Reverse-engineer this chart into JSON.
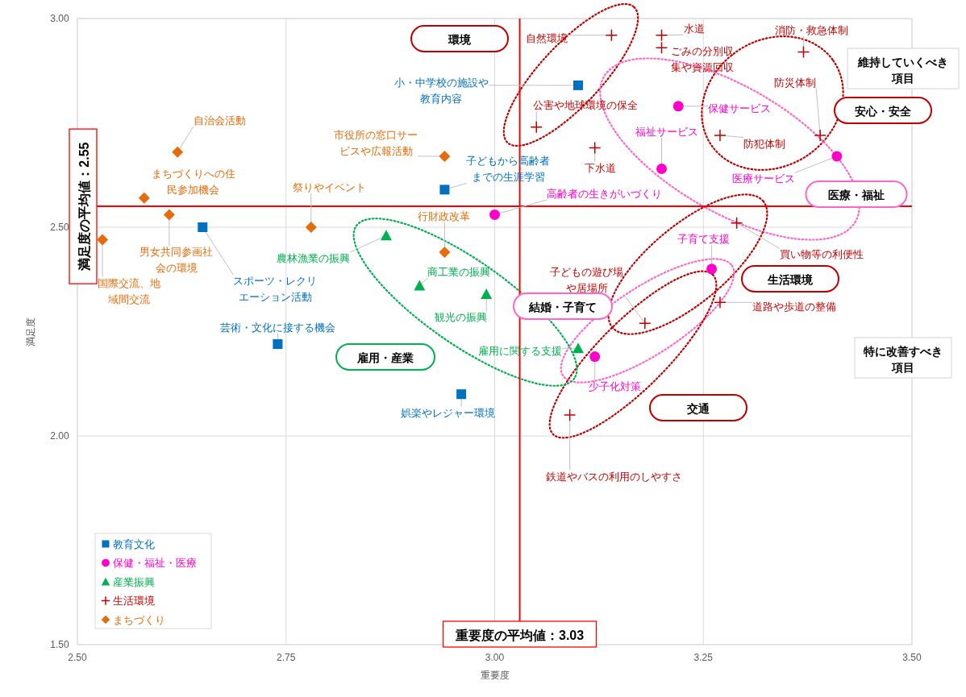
{
  "chart_data": {
    "type": "scatter",
    "xlabel": "重要度",
    "ylabel": "満足度",
    "xlim": [
      2.5,
      3.5
    ],
    "ylim": [
      1.5,
      3.0
    ],
    "xticks": [
      {
        "value": 2.5,
        "label": "2.50"
      },
      {
        "value": 2.75,
        "label": "2.75"
      },
      {
        "value": 3.0,
        "label": "3.00"
      },
      {
        "value": 3.25,
        "label": "3.25"
      },
      {
        "value": 3.5,
        "label": "3.50"
      }
    ],
    "yticks": [
      {
        "value": 1.5,
        "label": "1.50"
      },
      {
        "value": 2.0,
        "label": "2.00"
      },
      {
        "value": 2.5,
        "label": "2.50"
      },
      {
        "value": 3.0,
        "label": "3.00"
      }
    ],
    "grid": true,
    "legend": "bottom left",
    "series": [
      {
        "name": "教育文化",
        "color": "#0070c0",
        "marker": "square",
        "x": [
          3.1,
          2.94,
          2.65,
          2.74,
          2.96
        ],
        "values": [
          2.84,
          2.59,
          2.5,
          2.22,
          2.1
        ]
      },
      {
        "name": "保健・福祉・医療",
        "color": "#ff00cc",
        "marker": "circle",
        "x": [
          3.22,
          3.2,
          3.41,
          3.0,
          3.26,
          3.12
        ],
        "values": [
          2.79,
          2.64,
          2.67,
          2.53,
          2.4,
          2.19
        ]
      },
      {
        "name": "産業振興",
        "color": "#00b050",
        "marker": "triangle",
        "x": [
          2.87,
          2.91,
          2.99,
          3.1
        ],
        "values": [
          2.48,
          2.36,
          2.34,
          2.21
        ]
      },
      {
        "name": "生活環境",
        "color": "#c00000",
        "marker": "cross",
        "x": [
          3.14,
          3.2,
          3.2,
          3.37,
          3.05,
          3.27,
          3.39,
          3.12,
          3.29,
          3.27,
          3.18,
          3.09
        ],
        "values": [
          2.96,
          2.96,
          2.93,
          2.92,
          2.74,
          2.72,
          2.72,
          2.69,
          2.51,
          2.32,
          2.27,
          2.05
        ]
      },
      {
        "name": "まちづくり",
        "color": "#e46c0a",
        "marker": "diamond",
        "x": [
          2.62,
          2.94,
          2.58,
          2.61,
          2.78,
          2.53,
          2.94
        ],
        "values": [
          2.68,
          2.67,
          2.57,
          2.53,
          2.5,
          2.47,
          2.44
        ]
      }
    ],
    "ref_lines": [
      {
        "axis": "y",
        "value": 2.55,
        "label": "満足度の平均値：2.55",
        "color": "#ff0000"
      },
      {
        "axis": "x",
        "value": 3.03,
        "label": "重要度の平均値：3.03",
        "color": "#ff0000"
      }
    ],
    "annotations": [
      {
        "text": "小・中学校の施設や教育内容",
        "x": 3.1,
        "y": 2.84
      },
      {
        "text": "子どもから高齢者までの生涯学習",
        "x": 2.94,
        "y": 2.59
      },
      {
        "text": "スポーツ・レクリエーション活動",
        "x": 2.65,
        "y": 2.5
      },
      {
        "text": "芸術・文化に接する機会",
        "x": 2.74,
        "y": 2.22
      },
      {
        "text": "娯楽やレジャー環境",
        "x": 2.96,
        "y": 2.1
      },
      {
        "text": "保健サービス",
        "x": 3.22,
        "y": 2.79
      },
      {
        "text": "福祉サービス",
        "x": 3.2,
        "y": 2.64
      },
      {
        "text": "医療サービス",
        "x": 3.41,
        "y": 2.67
      },
      {
        "text": "高齢者の生きがいづくり",
        "x": 3.0,
        "y": 2.53
      },
      {
        "text": "子育て支援",
        "x": 3.26,
        "y": 2.4
      },
      {
        "text": "少子化対策",
        "x": 3.12,
        "y": 2.19
      },
      {
        "text": "農林漁業の振興",
        "x": 2.87,
        "y": 2.48
      },
      {
        "text": "商工業の振興",
        "x": 2.91,
        "y": 2.36
      },
      {
        "text": "観光の振興",
        "x": 2.99,
        "y": 2.34
      },
      {
        "text": "雇用に関する支援",
        "x": 3.1,
        "y": 2.21
      },
      {
        "text": "自然環境",
        "x": 3.14,
        "y": 2.96
      },
      {
        "text": "水道",
        "x": 3.2,
        "y": 2.96
      },
      {
        "text": "ごみの分別収集や資源回収",
        "x": 3.2,
        "y": 2.93
      },
      {
        "text": "消防・救急体制",
        "x": 3.37,
        "y": 2.92
      },
      {
        "text": "公害や地球環境の保全",
        "x": 3.05,
        "y": 2.74
      },
      {
        "text": "防犯体制",
        "x": 3.27,
        "y": 2.72
      },
      {
        "text": "防災体制",
        "x": 3.39,
        "y": 2.72
      },
      {
        "text": "下水道",
        "x": 3.12,
        "y": 2.69
      },
      {
        "text": "買い物等の利便性",
        "x": 3.29,
        "y": 2.51
      },
      {
        "text": "道路や歩道の整備",
        "x": 3.27,
        "y": 2.32
      },
      {
        "text": "子どもの遊び場や居場所",
        "x": 3.18,
        "y": 2.27
      },
      {
        "text": "鉄道やバスの利用のしやすさ",
        "x": 3.09,
        "y": 2.05
      },
      {
        "text": "自治会活動",
        "x": 2.62,
        "y": 2.68
      },
      {
        "text": "市役所の窓口サービスや広報活動",
        "x": 2.94,
        "y": 2.67
      },
      {
        "text": "まちづくりへの住民参加機会",
        "x": 2.58,
        "y": 2.57
      },
      {
        "text": "男女共同参画社会の環境",
        "x": 2.61,
        "y": 2.53
      },
      {
        "text": "祭りやイベント",
        "x": 2.78,
        "y": 2.5
      },
      {
        "text": "国際交流、地域間交流",
        "x": 2.53,
        "y": 2.47
      },
      {
        "text": "行財政改革",
        "x": 2.94,
        "y": 2.44
      },
      "環境",
      "安心・安全",
      "医療・福祉",
      "生活環境",
      "結婚・子育て",
      "雇用・産業",
      "交通",
      "維持していくべき項目",
      "特に改善すべき項目"
    ]
  }
}
